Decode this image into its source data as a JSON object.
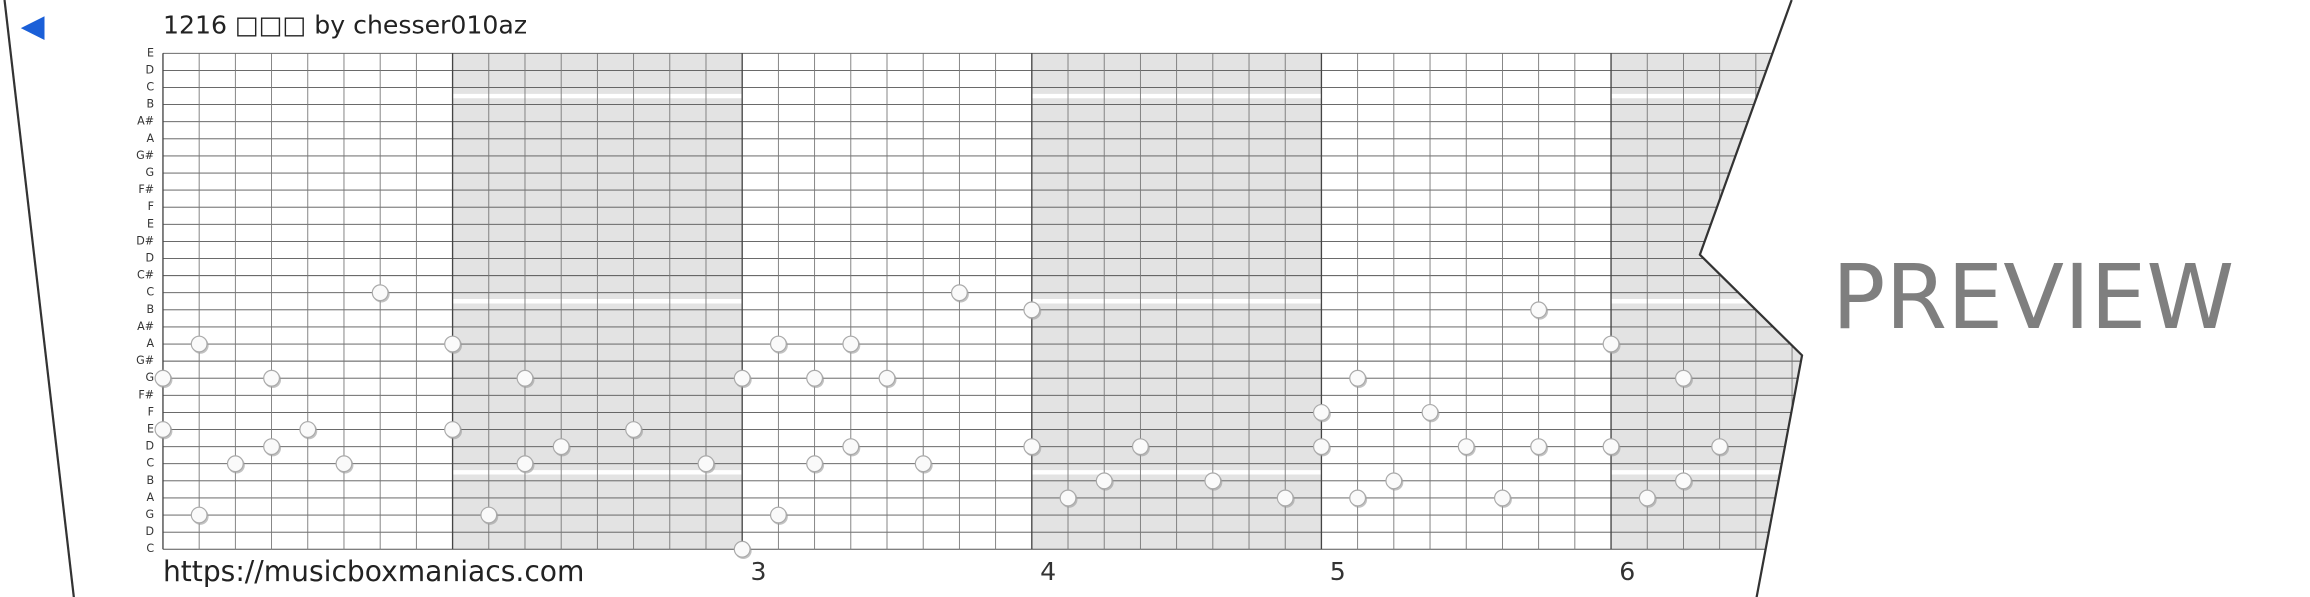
{
  "header": {
    "title": "1216 □□□ by chesser010az"
  },
  "footer": {
    "url": "https://musicboxmaniacs.com"
  },
  "preview": "PREVIEW",
  "rows": [
    "E",
    "D",
    "C",
    "B",
    "A#",
    "A",
    "G#",
    "G",
    "F#",
    "F",
    "E",
    "D#",
    "D",
    "C#",
    "C",
    "B",
    "A#",
    "A",
    "G#",
    "G",
    "F#",
    "F",
    "E",
    "D",
    "C",
    "B",
    "A",
    "G",
    "D",
    "C"
  ],
  "measures": [
    3,
    4,
    5,
    6
  ],
  "notes": [
    {
      "col": 0,
      "row": 19
    },
    {
      "col": 0,
      "row": 22
    },
    {
      "col": 1,
      "row": 17
    },
    {
      "col": 1,
      "row": 27
    },
    {
      "col": 2,
      "row": 24
    },
    {
      "col": 3,
      "row": 19
    },
    {
      "col": 3,
      "row": 23
    },
    {
      "col": 4,
      "row": 22
    },
    {
      "col": 5,
      "row": 24
    },
    {
      "col": 6,
      "row": 14
    },
    {
      "col": 8,
      "row": 17
    },
    {
      "col": 8,
      "row": 22
    },
    {
      "col": 9,
      "row": 27
    },
    {
      "col": 10,
      "row": 19
    },
    {
      "col": 10,
      "row": 24
    },
    {
      "col": 11,
      "row": 23
    },
    {
      "col": 13,
      "row": 22
    },
    {
      "col": 15,
      "row": 24
    },
    {
      "col": 16,
      "row": 19
    },
    {
      "col": 16,
      "row": 29
    },
    {
      "col": 17,
      "row": 17
    },
    {
      "col": 17,
      "row": 27
    },
    {
      "col": 18,
      "row": 19
    },
    {
      "col": 18,
      "row": 24
    },
    {
      "col": 19,
      "row": 17
    },
    {
      "col": 19,
      "row": 23
    },
    {
      "col": 20,
      "row": 19
    },
    {
      "col": 21,
      "row": 24
    },
    {
      "col": 22,
      "row": 14
    },
    {
      "col": 24,
      "row": 15
    },
    {
      "col": 24,
      "row": 23
    },
    {
      "col": 25,
      "row": 26
    },
    {
      "col": 26,
      "row": 25
    },
    {
      "col": 27,
      "row": 23
    },
    {
      "col": 29,
      "row": 25
    },
    {
      "col": 31,
      "row": 26
    },
    {
      "col": 32,
      "row": 21
    },
    {
      "col": 32,
      "row": 23
    },
    {
      "col": 33,
      "row": 19
    },
    {
      "col": 33,
      "row": 26
    },
    {
      "col": 34,
      "row": 25
    },
    {
      "col": 35,
      "row": 21
    },
    {
      "col": 36,
      "row": 23
    },
    {
      "col": 37,
      "row": 26
    },
    {
      "col": 38,
      "row": 15
    },
    {
      "col": 38,
      "row": 23
    },
    {
      "col": 40,
      "row": 17
    },
    {
      "col": 40,
      "row": 23
    },
    {
      "col": 41,
      "row": 26
    },
    {
      "col": 42,
      "row": 19
    },
    {
      "col": 42,
      "row": 25
    },
    {
      "col": 43,
      "row": 23
    }
  ]
}
